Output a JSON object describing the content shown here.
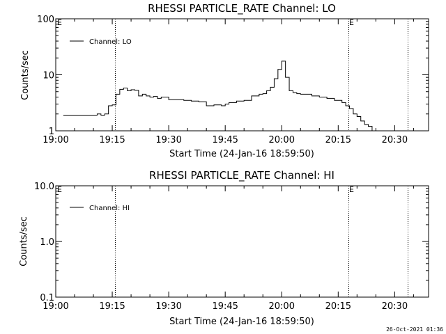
{
  "chart_data": [
    {
      "type": "line",
      "title": "RHESSI PARTICLE_RATE Channel: LO",
      "xlabel": "Start Time (24-Jan-16 18:59:50)",
      "ylabel": "Counts/sec",
      "y_scale": "log",
      "ylim": [
        1,
        100
      ],
      "xlim": [
        "19:00",
        "20:39"
      ],
      "x_ticks": [
        "19:00",
        "19:15",
        "19:30",
        "19:45",
        "20:00",
        "20:15",
        "20:30"
      ],
      "y_ticks": [
        "1",
        "10",
        "100"
      ],
      "grid": false,
      "legend_position": "top-left",
      "series": [
        {
          "name": "Channel: LO",
          "x": [
            "19:02",
            "19:03",
            "19:04",
            "19:05",
            "19:06",
            "19:07",
            "19:08",
            "19:09",
            "19:10",
            "19:11",
            "19:12",
            "19:13",
            "19:14",
            "19:15",
            "19:16",
            "19:17",
            "19:18",
            "19:19",
            "19:20",
            "19:21",
            "19:22",
            "19:23",
            "19:24",
            "19:25",
            "19:26",
            "19:27",
            "19:28",
            "19:30",
            "19:32",
            "19:34",
            "19:36",
            "19:38",
            "19:40",
            "19:42",
            "19:44",
            "19:45",
            "19:46",
            "19:48",
            "19:50",
            "19:52",
            "19:54",
            "19:55",
            "19:56",
            "19:57",
            "19:58",
            "19:59",
            "20:00",
            "20:01",
            "20:02",
            "20:03",
            "20:04",
            "20:05",
            "20:06",
            "20:08",
            "20:10",
            "20:12",
            "20:14",
            "20:16",
            "20:17",
            "20:18",
            "20:19",
            "20:20",
            "20:21",
            "20:22",
            "20:23",
            "20:24",
            "20:25",
            "20:26",
            "20:27",
            "20:28",
            "20:29",
            "20:30",
            "20:31",
            "20:32",
            "20:33",
            "20:34"
          ],
          "y": [
            1.9,
            1.9,
            1.9,
            1.9,
            1.9,
            1.9,
            1.9,
            1.9,
            1.9,
            2.0,
            1.9,
            2.0,
            2.8,
            2.9,
            4.5,
            5.5,
            5.8,
            5.2,
            5.4,
            5.3,
            4.2,
            4.5,
            4.2,
            4.0,
            4.1,
            3.8,
            4.0,
            3.6,
            3.6,
            3.5,
            3.4,
            3.3,
            2.8,
            2.9,
            2.8,
            3.0,
            3.2,
            3.4,
            3.5,
            4.2,
            4.5,
            4.6,
            5.2,
            6.0,
            8.5,
            12.5,
            17.5,
            9.0,
            5.2,
            4.8,
            4.6,
            4.5,
            4.5,
            4.2,
            4.0,
            3.8,
            3.5,
            3.2,
            2.8,
            2.5,
            2.0,
            1.8,
            1.5,
            1.3,
            1.2,
            1.0,
            1.0,
            1.0,
            1.0,
            1.0,
            1.0,
            1.0,
            1.0,
            1.0,
            1.0,
            1.0
          ]
        }
      ],
      "annotations": [
        "E",
        "E"
      ]
    },
    {
      "type": "line",
      "title": "RHESSI PARTICLE_RATE Channel: HI",
      "xlabel": "Start Time (24-Jan-16 18:59:50)",
      "ylabel": "Counts/sec",
      "y_scale": "log",
      "ylim": [
        0.1,
        10
      ],
      "xlim": [
        "19:00",
        "20:39"
      ],
      "x_ticks": [
        "19:00",
        "19:15",
        "19:30",
        "19:45",
        "20:00",
        "20:15",
        "20:30"
      ],
      "y_ticks": [
        "0.1",
        "1.0",
        "10.0"
      ],
      "grid": false,
      "legend_position": "top-left",
      "series": [
        {
          "name": "Channel: HI",
          "x": [],
          "y": []
        }
      ],
      "annotations": [
        "E",
        "E"
      ]
    }
  ],
  "footer_timestamp": "26-Oct-2021 01:36",
  "colors": {
    "line": "#000000",
    "background": "#ffffff"
  }
}
